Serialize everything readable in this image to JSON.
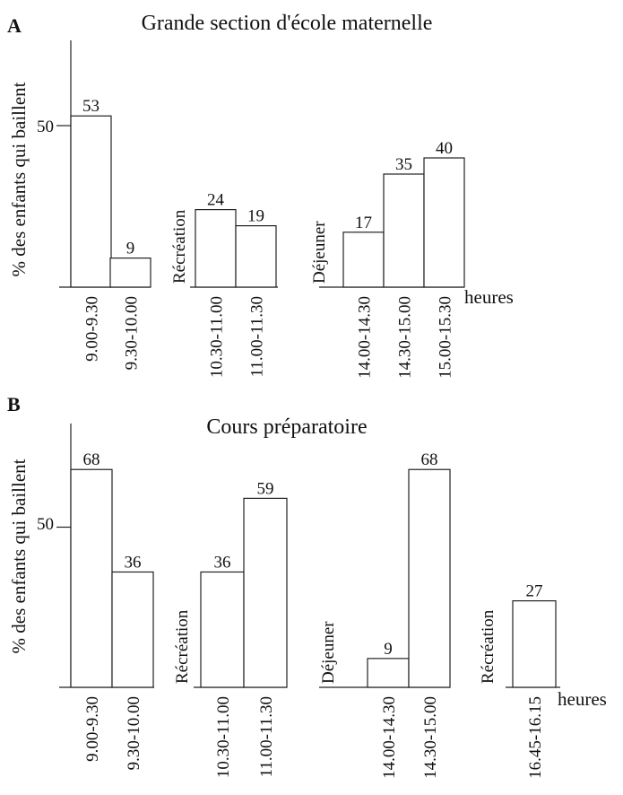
{
  "chart_data": [
    {
      "panel": "A",
      "type": "bar",
      "title": "Grande section d'école maternelle",
      "ylabel": "% des enfants qui baillent",
      "xlabel": "heures",
      "ytick": "50",
      "ylim": [
        0,
        75
      ],
      "groups": [
        {
          "label_before": "",
          "bars": [
            {
              "category": "9.00-9.30",
              "value": 53
            },
            {
              "category": "9.30-10.00",
              "value": 9
            }
          ]
        },
        {
          "label_before": "Récréation",
          "bars": [
            {
              "category": "10.30-11.00",
              "value": 24
            },
            {
              "category": "11.00-11.30",
              "value": 19
            }
          ]
        },
        {
          "label_before": "Déjeuner",
          "bars": [
            {
              "category": "14.00-14.30",
              "value": 17
            },
            {
              "category": "14.30-15.00",
              "value": 35
            },
            {
              "category": "15.00-15.30",
              "value": 40
            }
          ]
        }
      ]
    },
    {
      "panel": "B",
      "type": "bar",
      "title": "Cours préparatoire",
      "ylabel": "% des enfants qui baillent",
      "xlabel": "heures",
      "ytick": "50",
      "ylim": [
        0,
        80
      ],
      "groups": [
        {
          "label_before": "",
          "bars": [
            {
              "category": "9.00-9.30",
              "value": 68
            },
            {
              "category": "9.30-10.00",
              "value": 36
            }
          ]
        },
        {
          "label_before": "Récréation",
          "bars": [
            {
              "category": "10.30-11.00",
              "value": 36
            },
            {
              "category": "11.00-11.30",
              "value": 59
            }
          ]
        },
        {
          "label_before": "Déjeuner",
          "bars": [
            {
              "category": "14.00-14.30",
              "value": 9
            },
            {
              "category": "14.30-15.00",
              "value": 68
            }
          ]
        },
        {
          "label_before": "Récréation",
          "bars": [
            {
              "category": "16.45-16.15",
              "value": 27
            }
          ]
        }
      ]
    }
  ]
}
